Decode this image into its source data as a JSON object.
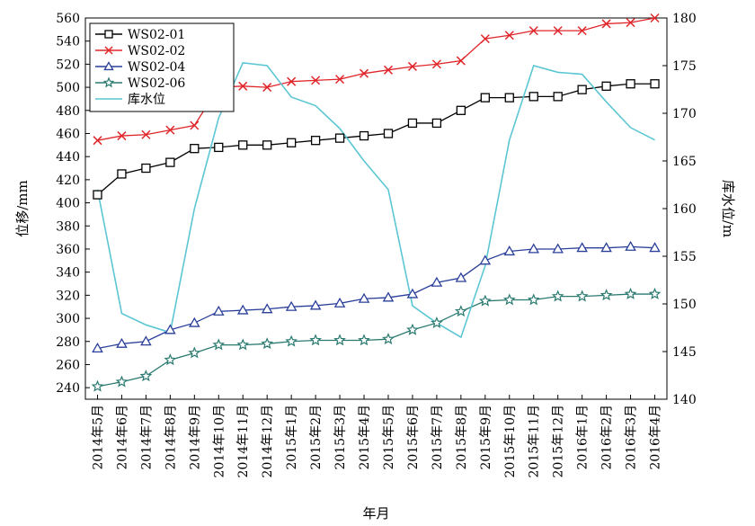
{
  "chart_data": {
    "type": "line",
    "xlabel": "年月",
    "ylabel": "位移/mm",
    "y2label": "库水位/m",
    "ylim": [
      230,
      560
    ],
    "y2lim": [
      140,
      180
    ],
    "yticks": [
      240,
      260,
      280,
      300,
      320,
      340,
      360,
      380,
      400,
      420,
      440,
      460,
      480,
      500,
      520,
      540,
      560
    ],
    "y2ticks": [
      140,
      145,
      150,
      155,
      160,
      165,
      170,
      175,
      180
    ],
    "grid": false,
    "legend_position": "top-left",
    "categories": [
      "2014年5月",
      "2014年6月",
      "2014年7月",
      "2014年8月",
      "2014年9月",
      "2014年10月",
      "2014年11月",
      "2014年12月",
      "2015年1月",
      "2015年2月",
      "2015年3月",
      "2015年4月",
      "2015年5月",
      "2015年6月",
      "2015年7月",
      "2015年8月",
      "2015年9月",
      "2015年10月",
      "2015年11月",
      "2015年12月",
      "2016年1月",
      "2016年2月",
      "2016年3月",
      "2016年4月"
    ],
    "series": [
      {
        "name": "WS02-01",
        "axis": "left",
        "color": "#000000",
        "marker": "square",
        "values": [
          407,
          425,
          430,
          435,
          447,
          448,
          450,
          450,
          452,
          454,
          456,
          458,
          460,
          469,
          469,
          480,
          491,
          491,
          492,
          492,
          498,
          501,
          503,
          503
        ]
      },
      {
        "name": "WS02-02",
        "axis": "left",
        "color": "#e0262a",
        "marker": "x",
        "values": [
          454,
          458,
          459,
          463,
          467,
          500,
          501,
          500,
          505,
          506,
          507,
          512,
          515,
          518,
          520,
          523,
          542,
          545,
          549,
          549,
          549,
          555,
          556,
          560
        ]
      },
      {
        "name": "WS02-04",
        "axis": "left",
        "color": "#2a3f9a",
        "marker": "triangle",
        "values": [
          274,
          278,
          280,
          290,
          296,
          306,
          307,
          308,
          310,
          311,
          313,
          317,
          318,
          321,
          331,
          335,
          350,
          358,
          360,
          360,
          361,
          361,
          362,
          361
        ]
      },
      {
        "name": "WS02-06",
        "axis": "left",
        "color": "#2a7a70",
        "marker": "star",
        "values": [
          241,
          245,
          250,
          264,
          270,
          277,
          277,
          278,
          280,
          281,
          281,
          281,
          282,
          290,
          296,
          306,
          315,
          316,
          316,
          319,
          319,
          320,
          321,
          321
        ]
      },
      {
        "name": "库水位",
        "axis": "right",
        "color": "#5cc6d4",
        "marker": "none",
        "values": [
          162,
          149,
          147.8,
          147,
          160,
          169.5,
          175.3,
          175,
          171.7,
          170.8,
          168.4,
          165,
          162,
          149.8,
          148,
          146.5,
          154,
          167.2,
          175,
          174.3,
          174.1,
          171.2,
          168.5,
          167.2
        ]
      }
    ]
  }
}
